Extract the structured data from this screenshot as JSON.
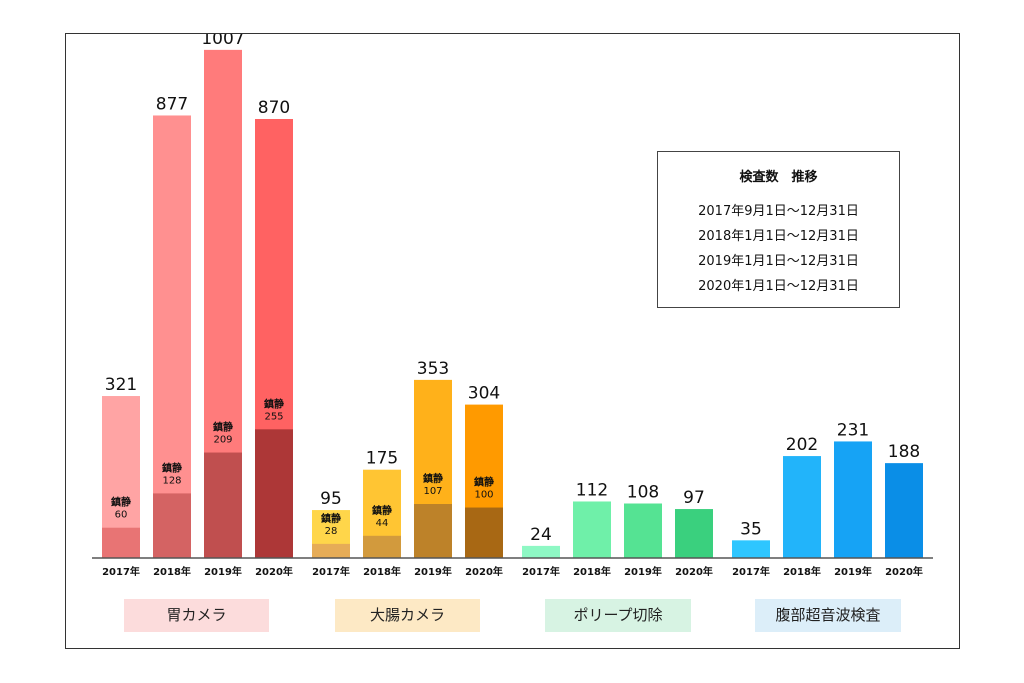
{
  "legend": {
    "title": "検査数　推移",
    "periods": [
      "2017年9月1日～12月31日",
      "2018年1月1日～12月31日",
      "2019年1月1日～12月31日",
      "2020年1月1日～12月31日"
    ]
  },
  "chart_data": {
    "type": "bar",
    "title": "",
    "xlabel": "",
    "ylabel": "",
    "ylim": [
      0,
      1100
    ],
    "grid": false,
    "years": [
      "2017年",
      "2018年",
      "2019年",
      "2020年"
    ],
    "groups": [
      {
        "name": "胃カメラ",
        "label_bg": "#fcdcdc",
        "colors": [
          "#ffa4a4",
          "#ff9090",
          "#ff7b7b",
          "#ff6262"
        ],
        "sub_colors": [
          "#e87474",
          "#d46363",
          "#c04f4f",
          "#ad3737"
        ],
        "totals": [
          321,
          877,
          1007,
          870
        ],
        "sedation": [
          60,
          128,
          209,
          255
        ]
      },
      {
        "name": "大腸カメラ",
        "label_bg": "#fde9c5",
        "colors": [
          "#ffd64a",
          "#ffc533",
          "#ffb11a",
          "#ff9a00"
        ],
        "sub_colors": [
          "#e6ac57",
          "#d29a3d",
          "#bd8229",
          "#a86814"
        ],
        "totals": [
          95,
          175,
          353,
          304
        ],
        "sedation": [
          28,
          44,
          107,
          100
        ]
      },
      {
        "name": "ポリープ切除",
        "label_bg": "#d7f3e3",
        "colors": [
          "#8ef8c4",
          "#6ff0a9",
          "#55e393",
          "#3ad07e"
        ],
        "totals": [
          24,
          112,
          108,
          97
        ]
      },
      {
        "name": "腹部超音波検査",
        "label_bg": "#dceef9",
        "colors": [
          "#2ec6ff",
          "#22b4fa",
          "#16a3f5",
          "#0a8ee7"
        ],
        "totals": [
          35,
          202,
          231,
          188
        ]
      }
    ],
    "sub_label": "鎮静"
  }
}
